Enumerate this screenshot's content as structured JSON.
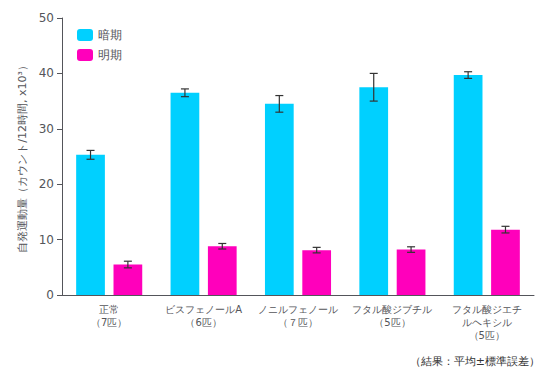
{
  "chart_data": {
    "type": "bar",
    "categories": [
      "正常\n（7匹）",
      "ビスフェノールA\n（6匹）",
      "ノニルフェノール\n（７匹）",
      "フタル酸ジブチル\n（5匹）",
      "フタル酸ジエチ\nルヘキシル\n（5匹）"
    ],
    "series": [
      {
        "name": "暗期",
        "color": "#00d0ff",
        "values": [
          25.3,
          36.5,
          34.5,
          37.5,
          39.7
        ],
        "errors": [
          0.8,
          0.7,
          1.5,
          2.5,
          0.6
        ]
      },
      {
        "name": "明期",
        "color": "#ff00bb",
        "values": [
          5.5,
          8.8,
          8.1,
          8.2,
          11.8
        ],
        "errors": [
          0.6,
          0.5,
          0.5,
          0.5,
          0.6
        ]
      }
    ],
    "ylabel": "自発運動量（カウント/12時間, x10³）",
    "ylim": [
      0,
      50
    ],
    "yticks": [
      0,
      10,
      20,
      30,
      40,
      50
    ],
    "grid": false,
    "legend": "upper left",
    "annotations": [
      "（結果：平均±標準誤差）"
    ]
  }
}
